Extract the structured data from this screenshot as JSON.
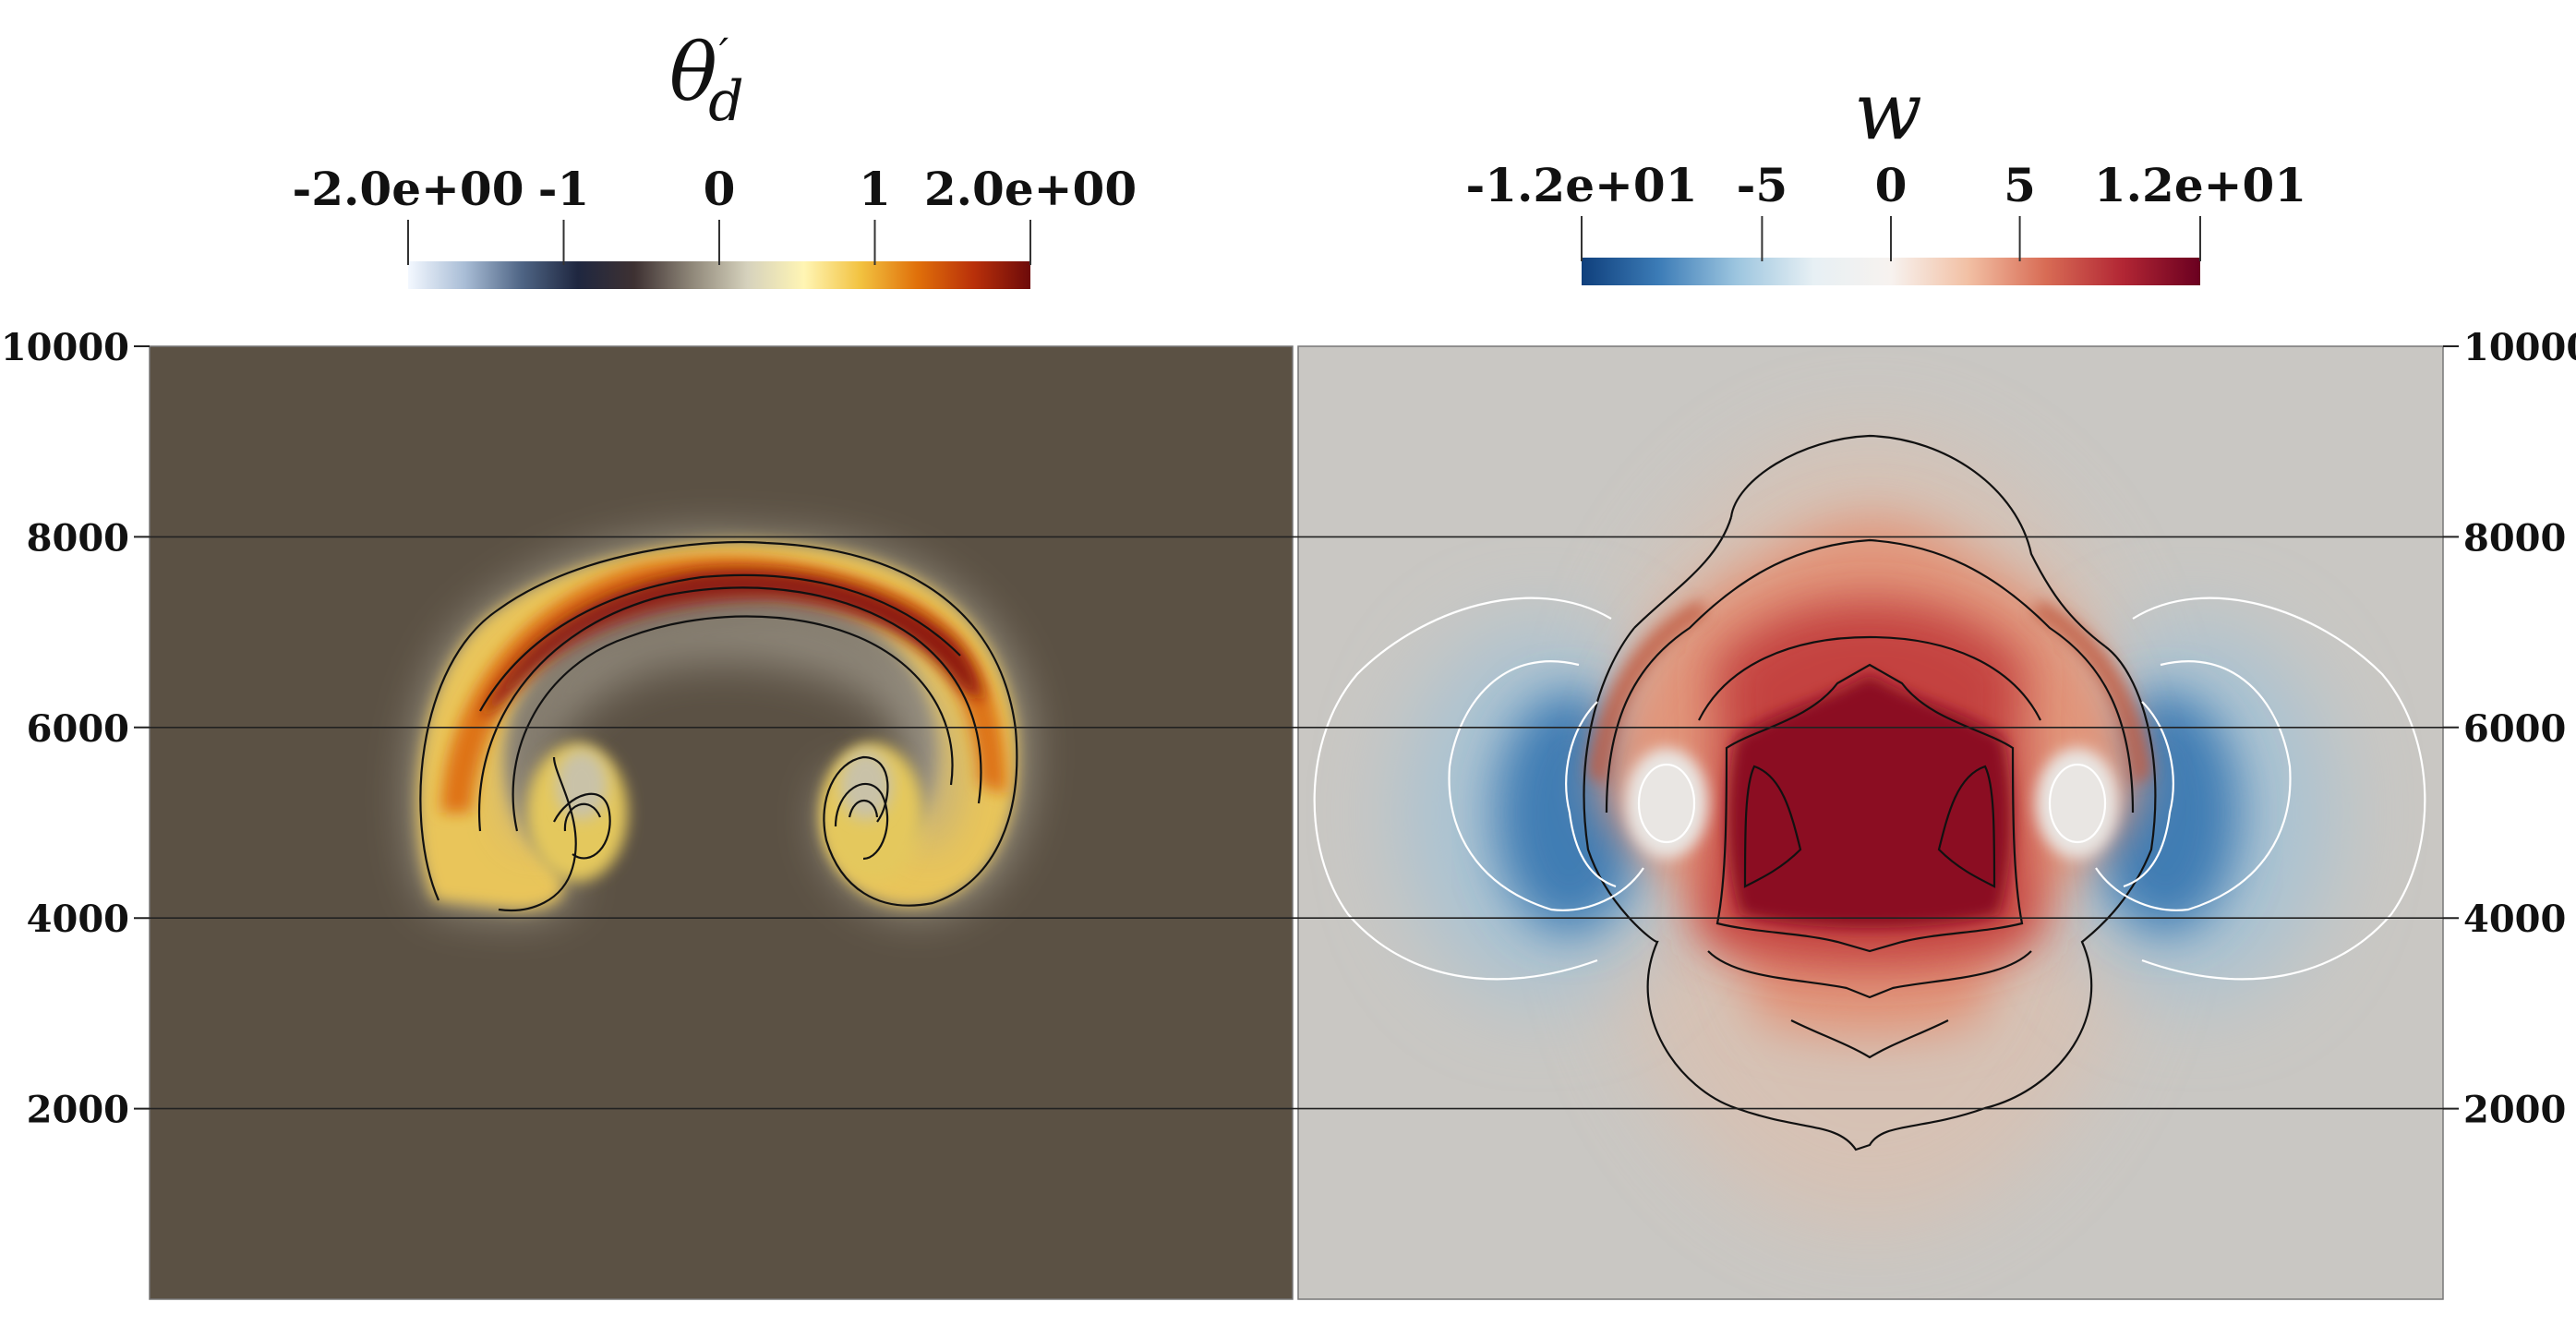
{
  "chart_data": [
    {
      "type": "heatmap",
      "panel": "left",
      "colorbar": {
        "title": {
          "main": "θ",
          "prime": "′",
          "subscript": "d"
        },
        "range": [
          -2.0,
          2.0
        ],
        "ticks": [
          {
            "value": -2.0,
            "label": "-2.0e+00"
          },
          {
            "value": -1,
            "label": "-1"
          },
          {
            "value": 0,
            "label": "0"
          },
          {
            "value": 1,
            "label": "1"
          },
          {
            "value": 2.0,
            "label": "2.0e+00"
          }
        ],
        "colormap": [
          "#f3f8ff",
          "#a9bdd6",
          "#4f6585",
          "#1f2740",
          "#3e3132",
          "#8e8678",
          "#d6d2bd",
          "#fff5b4",
          "#f2c240",
          "#e0700a",
          "#b9300a",
          "#6d0a0a"
        ]
      },
      "background_value": 0,
      "features": [
        "warm bubble rotor pair",
        "mushroom-shaped thermal cap near y≈7500"
      ]
    },
    {
      "type": "heatmap",
      "panel": "right",
      "colorbar": {
        "title": {
          "main": "w"
        },
        "range": [
          -12,
          12
        ],
        "ticks": [
          {
            "value": -12,
            "label": "-1.2e+01"
          },
          {
            "value": -5,
            "label": "-5"
          },
          {
            "value": 0,
            "label": "0"
          },
          {
            "value": 5,
            "label": "5"
          },
          {
            "value": 12,
            "label": "1.2e+01"
          }
        ],
        "colormap": [
          "#0f3f7c",
          "#3c7cb7",
          "#9cc5df",
          "#e7f0f4",
          "#f7f2ef",
          "#f2c0a4",
          "#d86c55",
          "#b22634",
          "#6a0020"
        ]
      },
      "background_value": 0,
      "features": [
        "updraft core centred near y≈5000",
        "downdraft lobes on both flanks"
      ]
    }
  ],
  "y_axis": {
    "range": [
      0,
      10000
    ],
    "ticks": [
      2000,
      4000,
      6000,
      8000,
      10000
    ],
    "grid": true
  }
}
